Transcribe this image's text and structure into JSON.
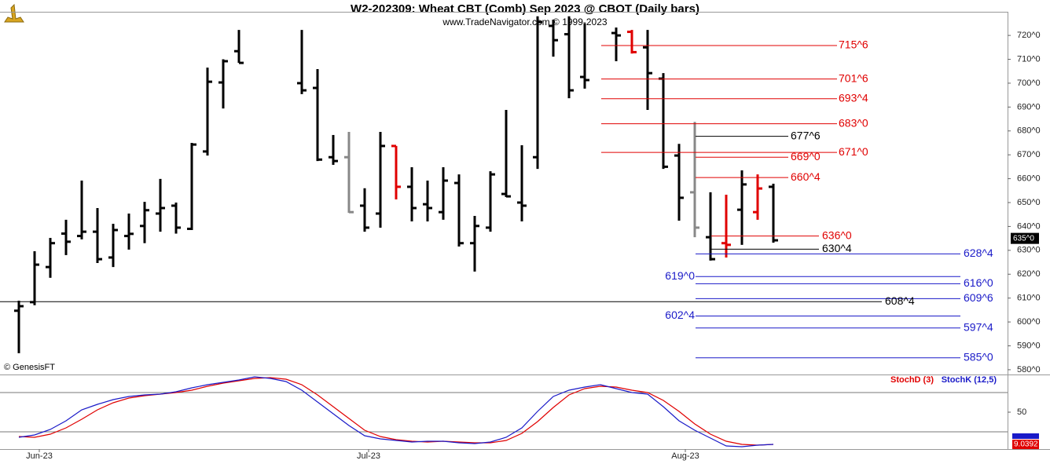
{
  "chart_data": [
    {
      "type": "ohlc",
      "title": "W2-202309:  Wheat CBT (Comb) Sep 2023 @ CBOT  (Daily bars)",
      "subtitle": "www.TradeNavigator.com © 1999-2023",
      "source": "© GenesisFT",
      "x": [
        0,
        1,
        2,
        3,
        4,
        5,
        6,
        7,
        8,
        9,
        10,
        11,
        12,
        13,
        14,
        18,
        19,
        20,
        21,
        22,
        23,
        24,
        25,
        26,
        27,
        28,
        29,
        30,
        31,
        32,
        33,
        34,
        35,
        36,
        38,
        39,
        40,
        41,
        42,
        43,
        44,
        45,
        46,
        47,
        48
      ],
      "high": [
        608.9,
        629.6,
        635.2,
        642.8,
        659.2,
        647.7,
        641.1,
        645.4,
        650.3,
        659.9,
        650,
        675,
        706.5,
        710,
        722.3,
        722.3,
        705.9,
        678.3,
        679.6,
        656,
        679.6,
        673.7,
        664.8,
        659.2,
        664.8,
        661.8,
        644.4,
        663.1,
        688.8,
        674,
        728,
        726.6,
        728,
        725,
        723.3,
        722.3,
        722.3,
        704.2,
        674.6,
        683.8,
        654.3,
        653.3,
        663.5,
        661.8,
        657.9
      ],
      "low": [
        586.9,
        607,
        618.5,
        628,
        634.6,
        624.7,
        623,
        630.3,
        633,
        637.8,
        637,
        638.5,
        669.7,
        689.4,
        708.5,
        695.4,
        667.4,
        665.8,
        645.7,
        637.8,
        639.5,
        651.3,
        642.1,
        642.1,
        642.8,
        631.6,
        621.1,
        637.8,
        652.3,
        642.1,
        664.1,
        711.1,
        693.7,
        697.7,
        709.2,
        712.4,
        688.8,
        664.1,
        642.4,
        635.5,
        625.7,
        627,
        632.3,
        642.8,
        633.2
      ],
      "open": [
        604.7,
        608.3,
        623,
        637,
        636,
        637.8,
        627,
        636,
        640.2,
        645.4,
        648.7,
        639,
        671.4,
        700.3,
        713.4,
        700,
        698,
        669,
        669,
        648.7,
        645.4,
        673.7,
        656.6,
        649.3,
        646,
        658.2,
        633,
        639.5,
        653.6,
        650,
        669,
        724,
        720.5,
        702.6,
        721,
        721.5,
        715,
        701.9,
        669.7,
        654.3,
        635.5,
        633,
        647,
        646,
        656.6
      ],
      "close": [
        606.6,
        624,
        633,
        633.6,
        637.8,
        626.3,
        638.5,
        636.9,
        646.8,
        647.7,
        639.5,
        674.3,
        700.6,
        709.2,
        708.5,
        697,
        668,
        667.4,
        646,
        639.5,
        673.7,
        656.6,
        647.7,
        647.7,
        659.2,
        633,
        640.2,
        661.8,
        652.6,
        648.7,
        725.6,
        718,
        697,
        701.3,
        720,
        713,
        704.2,
        665,
        652,
        639.5,
        626.3,
        632.3,
        657.6,
        655.9,
        634.2
      ],
      "colors": [
        "#000",
        "#000",
        "#000",
        "#000",
        "#000",
        "#000",
        "#000",
        "#000",
        "#000",
        "#000",
        "#000",
        "#000",
        "#000",
        "#000",
        "#000",
        "#000",
        "#000",
        "#000",
        "#888",
        "#000",
        "#000",
        "#e00000",
        "#000",
        "#000",
        "#000",
        "#000",
        "#000",
        "#000",
        "#000",
        "#000",
        "#000",
        "#000",
        "#000",
        "#000",
        "#000",
        "#e00000",
        "#000",
        "#000",
        "#000",
        "#888",
        "#000",
        "#e00000",
        "#000",
        "#e00000",
        "#000"
      ],
      "xlim": [
        -1.2,
        62.9
      ],
      "xticks": [
        {
          "value": 1.3,
          "label": "Jun-23"
        },
        {
          "value": 22.25,
          "label": "Jul-23"
        },
        {
          "value": 42.4,
          "label": "Aug-23"
        }
      ],
      "ylim": [
        578,
        729.9
      ],
      "yticks": [
        {
          "value": 580,
          "label": "580^0"
        },
        {
          "value": 590,
          "label": "590^0"
        },
        {
          "value": 600,
          "label": "600^0"
        },
        {
          "value": 610,
          "label": "610^0"
        },
        {
          "value": 620,
          "label": "620^0"
        },
        {
          "value": 630,
          "label": "630^0"
        },
        {
          "value": 640,
          "label": "640^0"
        },
        {
          "value": 650,
          "label": "650^0"
        },
        {
          "value": 660,
          "label": "660^0"
        },
        {
          "value": 670,
          "label": "670^0"
        },
        {
          "value": 680,
          "label": "680^0"
        },
        {
          "value": 690,
          "label": "690^0"
        },
        {
          "value": 700,
          "label": "700^0"
        },
        {
          "value": 710,
          "label": "710^0"
        },
        {
          "value": 720,
          "label": "720^0"
        }
      ],
      "last_price": {
        "value": 635,
        "label": "635^0"
      },
      "levels": [
        {
          "value": 715.75,
          "label": "715^6",
          "color": "#e00000"
        },
        {
          "value": 701.75,
          "label": "701^6",
          "color": "#e00000"
        },
        {
          "value": 693.5,
          "label": "693^4",
          "color": "#e00000"
        },
        {
          "value": 683,
          "label": "683^0",
          "color": "#e00000"
        },
        {
          "value": 671,
          "label": "671^0",
          "color": "#e00000"
        },
        {
          "value": 677.75,
          "label": "677^6",
          "color": "#000000"
        },
        {
          "value": 669,
          "label": "669^0",
          "color": "#e00000"
        },
        {
          "value": 660.5,
          "label": "660^4",
          "color": "#e00000"
        },
        {
          "value": 636,
          "label": "636^0",
          "color": "#e00000"
        },
        {
          "value": 630.5,
          "label": "630^4",
          "color": "#000000"
        },
        {
          "value": 628.5,
          "label": "628^4",
          "color": "#1a1ac8"
        },
        {
          "value": 619,
          "label": "619^0",
          "color": "#1a1ac8"
        },
        {
          "value": 616,
          "label": "616^0",
          "color": "#1a1ac8"
        },
        {
          "value": 609.75,
          "label": "609^6",
          "color": "#1a1ac8"
        },
        {
          "value": 608.5,
          "label": "608^4",
          "color": "#000000"
        },
        {
          "value": 602.5,
          "label": "602^4",
          "color": "#1a1ac8"
        },
        {
          "value": 597.5,
          "label": "597^4",
          "color": "#1a1ac8"
        },
        {
          "value": 585,
          "label": "585^0",
          "color": "#1a1ac8"
        }
      ]
    },
    {
      "type": "line",
      "x": [
        0,
        1,
        2,
        3,
        4,
        5,
        6,
        7,
        8,
        9,
        10,
        11,
        12,
        13,
        14,
        15,
        16,
        17,
        18,
        19,
        20,
        21,
        22,
        23,
        24,
        25,
        26,
        27,
        28,
        29,
        30,
        31,
        32,
        33,
        34,
        35,
        36,
        37,
        38,
        39,
        40,
        41,
        42,
        43,
        44,
        45,
        46,
        47,
        48
      ],
      "series": [
        {
          "name": "StochD (3)",
          "color": "#e00000",
          "values": [
            19,
            18,
            22,
            30,
            41,
            53,
            62,
            68,
            71,
            73,
            75,
            78,
            83,
            87,
            90,
            93,
            94,
            92,
            85,
            72,
            57,
            42,
            27,
            19,
            15,
            13,
            12,
            13,
            12,
            11,
            11,
            14,
            23,
            38,
            56,
            72,
            80,
            83,
            82,
            78,
            75,
            65,
            51,
            35,
            22,
            13,
            9,
            8,
            9
          ]
        },
        {
          "name": "StochK (12,5)",
          "color": "#1a1ac8",
          "values": [
            18,
            21,
            28,
            39,
            53,
            60,
            66,
            70,
            72,
            73,
            76,
            81,
            85,
            88,
            91,
            95,
            93,
            89,
            78,
            63,
            48,
            33,
            20,
            16,
            14,
            12,
            13,
            13,
            11,
            10,
            12,
            18,
            30,
            51,
            70,
            78,
            82,
            85,
            80,
            75,
            73,
            57,
            39,
            27,
            17,
            7,
            6,
            8,
            9
          ]
        }
      ],
      "ylim": [
        3,
        96
      ],
      "yticks": [
        50
      ],
      "levels": [
        25,
        75
      ],
      "last_value": 9.0392
    }
  ]
}
